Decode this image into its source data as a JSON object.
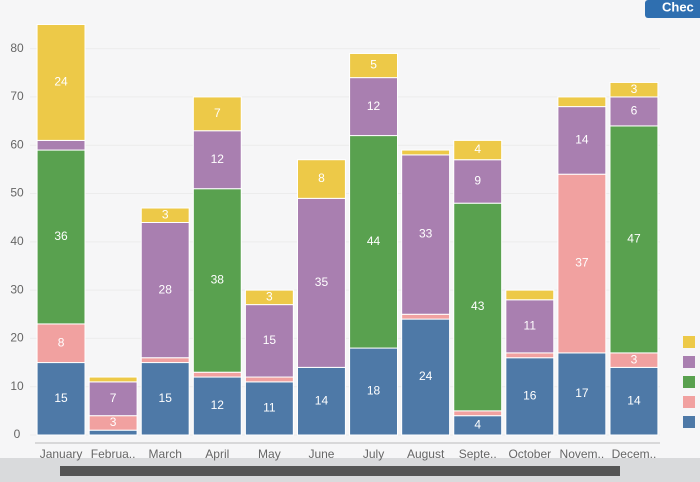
{
  "button": "Chec",
  "chart_data": {
    "type": "stacked-bar",
    "categories": [
      "January",
      "Februa..",
      "March",
      "April",
      "May",
      "June",
      "July",
      "August",
      "Septe..",
      "October",
      "Novem..",
      "Decem.."
    ],
    "series": [
      {
        "color": "#4e79a7",
        "values": [
          15,
          1,
          15,
          12,
          11,
          14,
          18,
          24,
          4,
          16,
          17,
          14
        ]
      },
      {
        "color": "#f1a1a0",
        "values": [
          8,
          3,
          1,
          1,
          1,
          0,
          0,
          1,
          1,
          1,
          37,
          3
        ]
      },
      {
        "color": "#59a14f",
        "values": [
          36,
          0,
          0,
          38,
          0,
          0,
          44,
          0,
          43,
          0,
          0,
          47
        ]
      },
      {
        "color": "#a97fb0",
        "values": [
          2,
          7,
          28,
          12,
          15,
          35,
          12,
          33,
          9,
          11,
          14,
          6
        ]
      },
      {
        "color": "#edc948",
        "values": [
          24,
          1,
          3,
          7,
          3,
          8,
          5,
          1,
          4,
          2,
          2,
          3
        ]
      }
    ],
    "ylim": [
      0,
      88
    ],
    "yticks": [
      0,
      10,
      20,
      30,
      40,
      50,
      60,
      70,
      80
    ],
    "grid": true
  }
}
